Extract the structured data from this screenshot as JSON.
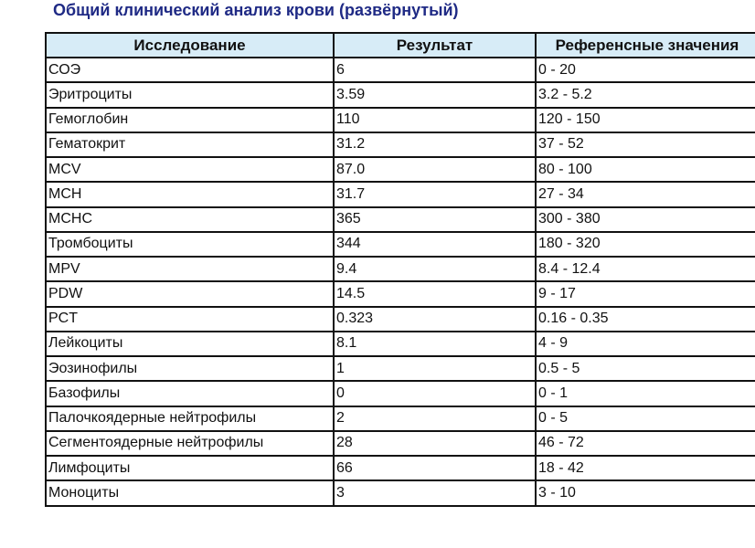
{
  "title": "Общий клинический анализ крови (развёрнутый)",
  "table": {
    "headers": [
      "Исследование",
      "Результат",
      "Референсные значения"
    ],
    "rows": [
      [
        "СОЭ",
        "6",
        "0 - 20"
      ],
      [
        "Эритроциты",
        "3.59",
        "3.2 - 5.2"
      ],
      [
        "Гемоглобин",
        "110",
        "120 - 150"
      ],
      [
        "Гематокрит",
        "31.2",
        "37 - 52"
      ],
      [
        "MCV",
        "87.0",
        "80 - 100"
      ],
      [
        "MCH",
        "31.7",
        "27 - 34"
      ],
      [
        "MCHC",
        "365",
        "300 - 380"
      ],
      [
        "Тромбоциты",
        "344",
        "180 - 320"
      ],
      [
        "MPV",
        "9.4",
        "8.4 - 12.4"
      ],
      [
        "PDW",
        "14.5",
        "9 - 17"
      ],
      [
        "PCT",
        "0.323",
        "0.16 - 0.35"
      ],
      [
        "Лейкоциты",
        "8.1",
        "4 - 9"
      ],
      [
        "Эозинофилы",
        "1",
        "0.5 - 5"
      ],
      [
        "Базофилы",
        "0",
        "0 - 1"
      ],
      [
        "Палочкоядерные нейтрофилы",
        "2",
        "0 - 5"
      ],
      [
        "Сегментоядерные нейтрофилы",
        "28",
        "46 - 72"
      ],
      [
        "Лимфоциты",
        "66",
        "18 - 42"
      ],
      [
        "Моноциты",
        "3",
        "3 - 10"
      ]
    ]
  },
  "colors": {
    "title": "#1f2a85",
    "header_background": "#d7ecf7",
    "border": "#111111"
  }
}
